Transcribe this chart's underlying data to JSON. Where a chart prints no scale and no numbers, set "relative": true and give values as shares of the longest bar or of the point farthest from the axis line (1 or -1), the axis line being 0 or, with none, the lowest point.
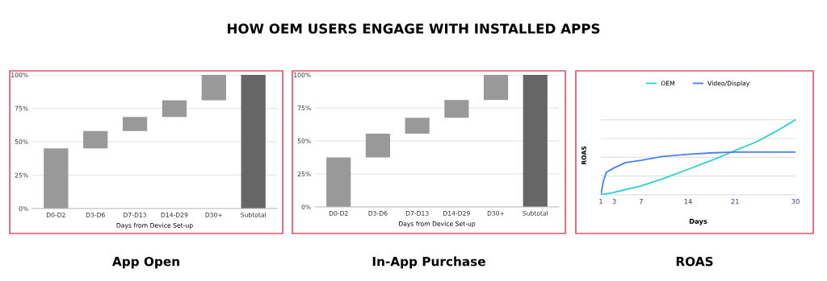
{
  "chart_data": [
    {
      "type": "bar",
      "title": "App Open",
      "annotations": [
        "HOW OEM USERS ENGAGE WITH INSTALLED APPS"
      ],
      "xlabel": "Days from Device Set-up",
      "categories": [
        "D0-D2",
        "D3-D6",
        "D7-D13",
        "D14-D29",
        "D30+",
        "Subtotal"
      ],
      "values": [
        45,
        13,
        10.5,
        12.5,
        19,
        100
      ],
      "base": [
        0,
        45,
        58,
        68.5,
        81,
        0
      ],
      "colors": [
        "#999999",
        "#999999",
        "#999999",
        "#999999",
        "#999999",
        "#666666"
      ],
      "ylim": [
        0,
        100
      ],
      "yticks": [
        {
          "value": 0,
          "label": "0%"
        },
        {
          "value": 25,
          "label": "25%"
        },
        {
          "value": 50,
          "label": "50%"
        },
        {
          "value": 75,
          "label": "75%"
        },
        {
          "value": 100,
          "label": "100%"
        }
      ],
      "grid": "y"
    },
    {
      "type": "bar",
      "title": "In-App Purchase",
      "xlabel": "Days from Device Set-up",
      "categories": [
        "D0-D2",
        "D3-D6",
        "D7-D13",
        "D14-D29",
        "D30+",
        "Subtotal"
      ],
      "values": [
        37.5,
        18,
        12,
        13.5,
        19,
        100
      ],
      "base": [
        0,
        37.5,
        55.5,
        67.5,
        81,
        0
      ],
      "colors": [
        "#999999",
        "#999999",
        "#999999",
        "#999999",
        "#999999",
        "#666666"
      ],
      "ylim": [
        0,
        100
      ],
      "yticks": [
        {
          "value": 0,
          "label": "0%"
        },
        {
          "value": 25,
          "label": "25%"
        },
        {
          "value": 50,
          "label": "50%"
        },
        {
          "value": 75,
          "label": "75%"
        },
        {
          "value": 100,
          "label": "100%"
        }
      ],
      "grid": "y"
    },
    {
      "type": "line",
      "title": "ROAS",
      "xlabel": "Days",
      "ylabel": "ROAS",
      "relative": true,
      "xlim": [
        1,
        30
      ],
      "xticks": [
        1,
        3,
        7,
        14,
        21,
        30
      ],
      "grid": "y",
      "legend": "top",
      "marker": "none",
      "line_style": "solid",
      "series": [
        {
          "name": "OEM",
          "color": "#2ecfd6",
          "x": [
            1,
            3,
            7,
            10.1,
            14,
            17.8,
            20.2,
            21,
            24.3,
            27.2,
            30
          ],
          "values": [
            0,
            0.034,
            0.12,
            0.21,
            0.34,
            0.47,
            0.56,
            0.59,
            0.71,
            0.85,
            1
          ]
        },
        {
          "name": "Video/Display",
          "color": "#4a7ef0",
          "x": [
            1,
            1.37,
            1.8,
            3,
            4.7,
            7,
            10.1,
            14,
            17.8,
            21,
            30
          ],
          "values": [
            0,
            0.18,
            0.3,
            0.36,
            0.43,
            0.46,
            0.51,
            0.54,
            0.56,
            0.57,
            0.57
          ]
        }
      ]
    }
  ]
}
